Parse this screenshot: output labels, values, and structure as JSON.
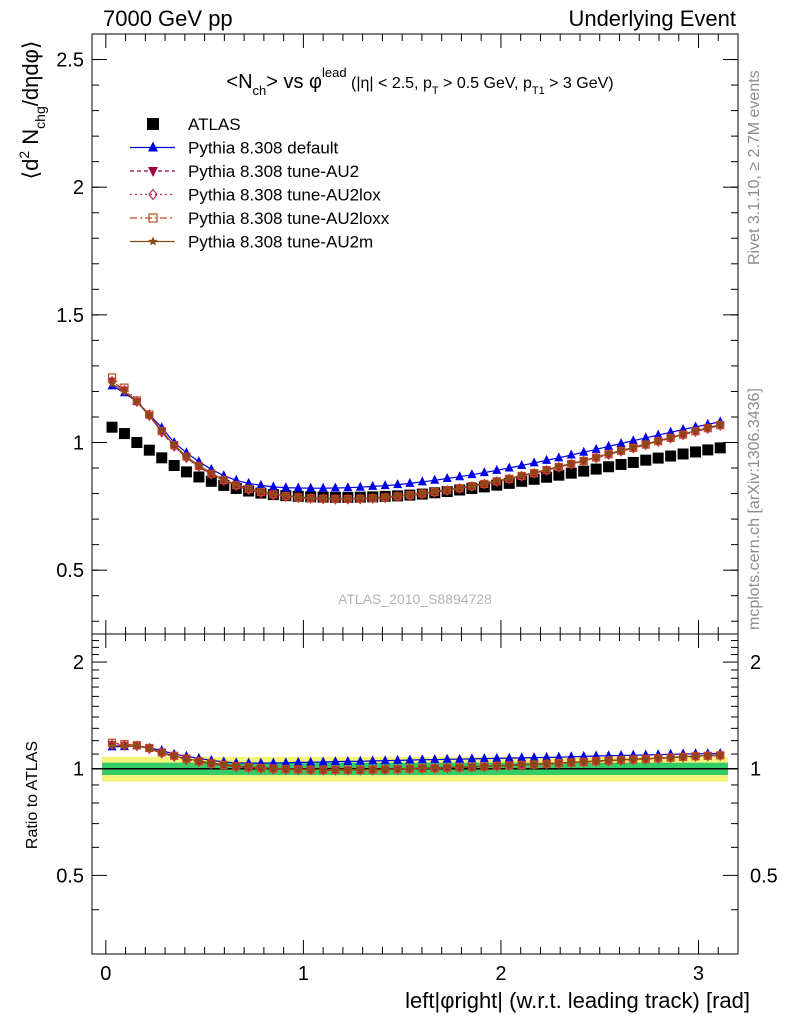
{
  "header": {
    "left": "7000 GeV pp",
    "right": "Underlying Event"
  },
  "side_labels": {
    "rivet": "Rivet 3.1.10, ≥ 2.7M events",
    "mcplots": "mcplots.cern.ch [arXiv:1306.3436]"
  },
  "watermark": "ATLAS_2010_S8894728",
  "colors": {
    "atlas": "#000000",
    "default": "#0000e6",
    "au2": "#a0003c",
    "au2lox": "#c0305a",
    "au2loxx": "#c04a1e",
    "au2m": "#8a4a14",
    "band_inner": "#33cc66",
    "band_outer": "#f4f47a"
  },
  "chart_data": [
    {
      "type": "scatter",
      "panel": "main",
      "title": "<N_ch> vs φ^lead (|η| < 2.5, p_T > 0.5 GeV, p_T1 > 3 GeV)",
      "title_parts": {
        "main": "<N",
        "sub": "ch",
        "mid": "> vs φ",
        "sup": "lead",
        "cuts_a": " (|η| < 2.5, p",
        "cuts_sub1": "T",
        "cuts_b": " > 0.5 GeV, p",
        "cuts_sub2": "T1",
        "cuts_c": " > 3 GeV)"
      },
      "ylabel": "⟨d² N_chg/dηdφ⟩",
      "ylabel_parts": {
        "a": "⟨d",
        "sup": "2",
        "b": " N",
        "sub": "chg",
        "c": "/dηdφ⟩"
      },
      "xlim": [
        -0.07,
        3.2
      ],
      "ylim": [
        0.25,
        2.6
      ],
      "yticks": [
        0.5,
        1,
        1.5,
        2,
        2.5
      ],
      "ytick_labels": [
        "0.5",
        "1",
        "1.5",
        "2",
        "2.5"
      ],
      "legend_position": "top-left",
      "x": [
        0.0314,
        0.0942,
        0.157,
        0.22,
        0.283,
        0.346,
        0.408,
        0.471,
        0.534,
        0.597,
        0.66,
        0.723,
        0.785,
        0.848,
        0.911,
        0.974,
        1.037,
        1.1,
        1.162,
        1.225,
        1.288,
        1.351,
        1.414,
        1.477,
        1.539,
        1.602,
        1.665,
        1.728,
        1.791,
        1.853,
        1.916,
        1.979,
        2.042,
        2.105,
        2.168,
        2.231,
        2.293,
        2.356,
        2.419,
        2.482,
        2.545,
        2.608,
        2.67,
        2.733,
        2.796,
        2.859,
        2.922,
        2.985,
        3.047,
        3.11
      ],
      "series": [
        {
          "name": "ATLAS",
          "marker": "square",
          "values": [
            1.06,
            1.035,
            1.0,
            0.97,
            0.94,
            0.91,
            0.885,
            0.865,
            0.848,
            0.832,
            0.82,
            0.81,
            0.802,
            0.796,
            0.792,
            0.789,
            0.787,
            0.786,
            0.785,
            0.785,
            0.786,
            0.787,
            0.789,
            0.791,
            0.794,
            0.798,
            0.803,
            0.808,
            0.814,
            0.82,
            0.826,
            0.833,
            0.84,
            0.848,
            0.856,
            0.864,
            0.872,
            0.88,
            0.888,
            0.896,
            0.905,
            0.914,
            0.922,
            0.931,
            0.939,
            0.947,
            0.955,
            0.963,
            0.971,
            0.979
          ]
        },
        {
          "name": "Pythia 8.308 default",
          "marker": "triangle-up",
          "values": [
            1.222,
            1.195,
            1.16,
            1.11,
            1.058,
            1.0,
            0.96,
            0.925,
            0.895,
            0.87,
            0.852,
            0.84,
            0.832,
            0.826,
            0.823,
            0.822,
            0.821,
            0.821,
            0.822,
            0.823,
            0.825,
            0.828,
            0.831,
            0.835,
            0.84,
            0.846,
            0.852,
            0.859,
            0.866,
            0.874,
            0.882,
            0.891,
            0.9,
            0.91,
            0.92,
            0.93,
            0.94,
            0.951,
            0.962,
            0.973,
            0.985,
            0.996,
            1.007,
            1.018,
            1.029,
            1.04,
            1.051,
            1.061,
            1.071,
            1.081
          ]
        },
        {
          "name": "Pythia 8.308 tune-AU2",
          "marker": "triangle-down",
          "values": [
            1.24,
            1.205,
            1.16,
            1.105,
            1.04,
            0.985,
            0.94,
            0.905,
            0.875,
            0.85,
            0.83,
            0.815,
            0.803,
            0.794,
            0.788,
            0.784,
            0.781,
            0.779,
            0.778,
            0.778,
            0.779,
            0.781,
            0.784,
            0.788,
            0.793,
            0.799,
            0.805,
            0.812,
            0.82,
            0.828,
            0.837,
            0.847,
            0.857,
            0.868,
            0.879,
            0.891,
            0.903,
            0.915,
            0.927,
            0.94,
            0.953,
            0.966,
            0.978,
            0.991,
            1.004,
            1.017,
            1.03,
            1.043,
            1.055,
            1.067
          ]
        },
        {
          "name": "Pythia 8.308 tune-AU2lox",
          "marker": "diamond",
          "values": [
            1.24,
            1.205,
            1.16,
            1.105,
            1.04,
            0.985,
            0.94,
            0.905,
            0.875,
            0.85,
            0.83,
            0.815,
            0.803,
            0.794,
            0.788,
            0.784,
            0.781,
            0.779,
            0.778,
            0.778,
            0.779,
            0.781,
            0.784,
            0.788,
            0.793,
            0.799,
            0.805,
            0.812,
            0.82,
            0.828,
            0.837,
            0.847,
            0.857,
            0.868,
            0.879,
            0.891,
            0.903,
            0.915,
            0.927,
            0.94,
            0.953,
            0.966,
            0.978,
            0.991,
            1.004,
            1.017,
            1.03,
            1.043,
            1.055,
            1.067
          ]
        },
        {
          "name": "Pythia 8.308 tune-AU2loxx",
          "marker": "open-square",
          "values": [
            1.255,
            1.215,
            1.165,
            1.11,
            1.045,
            0.99,
            0.945,
            0.908,
            0.878,
            0.853,
            0.833,
            0.818,
            0.806,
            0.797,
            0.79,
            0.785,
            0.782,
            0.78,
            0.779,
            0.779,
            0.78,
            0.782,
            0.785,
            0.789,
            0.794,
            0.8,
            0.806,
            0.813,
            0.821,
            0.829,
            0.838,
            0.848,
            0.858,
            0.869,
            0.88,
            0.892,
            0.904,
            0.916,
            0.928,
            0.941,
            0.954,
            0.967,
            0.979,
            0.992,
            1.005,
            1.018,
            1.031,
            1.044,
            1.056,
            1.068
          ]
        },
        {
          "name": "Pythia 8.308 tune-AU2m",
          "marker": "star",
          "values": [
            1.23,
            1.2,
            1.16,
            1.105,
            1.045,
            0.99,
            0.945,
            0.91,
            0.88,
            0.855,
            0.835,
            0.82,
            0.808,
            0.799,
            0.792,
            0.787,
            0.784,
            0.782,
            0.781,
            0.781,
            0.782,
            0.784,
            0.787,
            0.791,
            0.796,
            0.802,
            0.808,
            0.815,
            0.823,
            0.831,
            0.84,
            0.85,
            0.86,
            0.871,
            0.882,
            0.894,
            0.906,
            0.918,
            0.93,
            0.943,
            0.956,
            0.969,
            0.981,
            0.994,
            1.007,
            1.02,
            1.033,
            1.046,
            1.058,
            1.07
          ]
        }
      ]
    },
    {
      "type": "scatter",
      "panel": "ratio",
      "xlabel": "left|φright| (w.r.t. leading track) [rad]",
      "xlabel_parts": {
        "a": "left|",
        "phi": "φ",
        "b": "right| (w.r.t. leading track) [rad]"
      },
      "ylabel": "Ratio to ATLAS",
      "xlim": [
        -0.07,
        3.2
      ],
      "ylim": [
        0.3,
        2.4
      ],
      "xticks": [
        0,
        1,
        2,
        3
      ],
      "xtick_labels": [
        "0",
        "1",
        "2",
        "3"
      ],
      "yticks": [
        0.5,
        1,
        2
      ],
      "ytick_labels": [
        "0.5",
        "1",
        "2"
      ],
      "band_inner": [
        0.96,
        1.04
      ],
      "band_outer": [
        0.92,
        1.08
      ]
    }
  ]
}
